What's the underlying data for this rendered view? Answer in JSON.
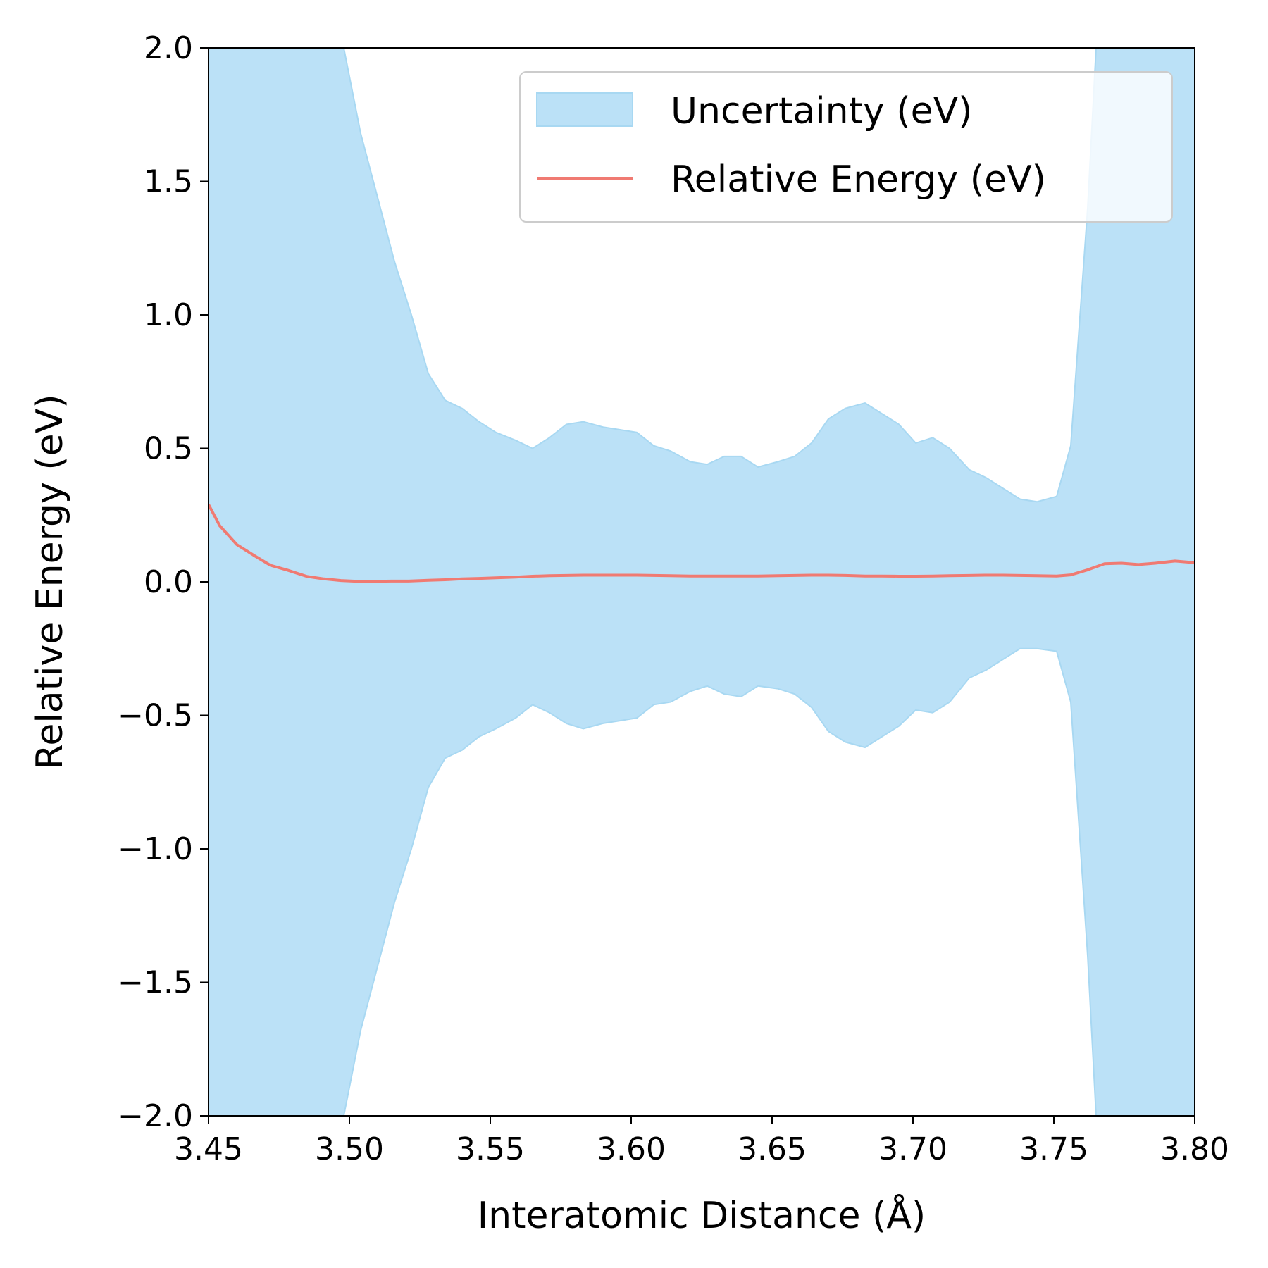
{
  "chart_data": {
    "type": "area",
    "title": "",
    "xlabel": "Interatomic Distance (Å)",
    "ylabel": "Relative Energy (eV)",
    "xlim": [
      3.45,
      3.8
    ],
    "ylim": [
      -2.0,
      2.0
    ],
    "grid": false,
    "legend_position": "top-right",
    "x_ticks": [
      "3.45",
      "3.50",
      "3.55",
      "3.60",
      "3.65",
      "3.70",
      "3.75",
      "3.80"
    ],
    "y_ticks": [
      "2.0",
      "1.5",
      "1.0",
      "0.5",
      "0.0",
      "−0.5",
      "−1.0",
      "−1.5",
      "−2.0"
    ],
    "x_tick_values": [
      3.45,
      3.5,
      3.55,
      3.6,
      3.65,
      3.7,
      3.75,
      3.8
    ],
    "y_tick_values": [
      2.0,
      1.5,
      1.0,
      0.5,
      0.0,
      -0.5,
      -1.0,
      -1.5,
      -2.0
    ],
    "series": [
      {
        "name": "Relative Energy (eV)",
        "kind": "line",
        "color": "#f07a72",
        "x": [
          3.45,
          3.454,
          3.46,
          3.466,
          3.472,
          3.478,
          3.485,
          3.491,
          3.497,
          3.503,
          3.509,
          3.515,
          3.521,
          3.528,
          3.534,
          3.54,
          3.546,
          3.552,
          3.559,
          3.565,
          3.571,
          3.577,
          3.583,
          3.59,
          3.596,
          3.602,
          3.608,
          3.614,
          3.621,
          3.627,
          3.633,
          3.639,
          3.645,
          3.652,
          3.658,
          3.664,
          3.67,
          3.676,
          3.683,
          3.689,
          3.695,
          3.701,
          3.707,
          3.713,
          3.72,
          3.726,
          3.732,
          3.738,
          3.744,
          3.751,
          3.756,
          3.762,
          3.768,
          3.774,
          3.78,
          3.786,
          3.793,
          3.8
        ],
        "y": [
          0.29,
          0.21,
          0.14,
          0.1,
          0.062,
          0.044,
          0.02,
          0.011,
          0.005,
          0.002,
          0.002,
          0.003,
          0.003,
          0.006,
          0.008,
          0.011,
          0.013,
          0.015,
          0.018,
          0.021,
          0.023,
          0.024,
          0.025,
          0.025,
          0.025,
          0.025,
          0.024,
          0.023,
          0.022,
          0.022,
          0.022,
          0.022,
          0.022,
          0.023,
          0.024,
          0.025,
          0.025,
          0.024,
          0.022,
          0.022,
          0.021,
          0.021,
          0.022,
          0.023,
          0.024,
          0.025,
          0.025,
          0.024,
          0.023,
          0.022,
          0.026,
          0.045,
          0.068,
          0.07,
          0.065,
          0.07,
          0.078,
          0.072
        ]
      },
      {
        "name": "Uncertainty (eV)",
        "kind": "band",
        "color": "#bbe1f7",
        "edge_color": "#a8d8f2",
        "x": [
          3.45,
          3.498,
          3.504,
          3.51,
          3.516,
          3.522,
          3.528,
          3.534,
          3.54,
          3.546,
          3.552,
          3.559,
          3.565,
          3.571,
          3.577,
          3.583,
          3.59,
          3.596,
          3.602,
          3.608,
          3.614,
          3.621,
          3.627,
          3.633,
          3.639,
          3.645,
          3.652,
          3.658,
          3.664,
          3.67,
          3.676,
          3.683,
          3.689,
          3.695,
          3.701,
          3.707,
          3.713,
          3.72,
          3.726,
          3.732,
          3.738,
          3.744,
          3.751,
          3.756,
          3.762,
          3.765,
          3.8
        ],
        "upper": [
          2.0,
          2.0,
          1.68,
          1.44,
          1.2,
          1.0,
          0.78,
          0.68,
          0.65,
          0.6,
          0.56,
          0.53,
          0.5,
          0.54,
          0.59,
          0.6,
          0.58,
          0.57,
          0.56,
          0.51,
          0.49,
          0.45,
          0.44,
          0.47,
          0.47,
          0.43,
          0.45,
          0.47,
          0.52,
          0.61,
          0.65,
          0.67,
          0.63,
          0.59,
          0.52,
          0.54,
          0.5,
          0.42,
          0.39,
          0.35,
          0.31,
          0.3,
          0.32,
          0.51,
          1.4,
          2.0,
          2.0
        ],
        "lower": [
          -2.0,
          -2.0,
          -1.68,
          -1.44,
          -1.2,
          -1.0,
          -0.77,
          -0.66,
          -0.63,
          -0.58,
          -0.55,
          -0.51,
          -0.46,
          -0.49,
          -0.53,
          -0.55,
          -0.53,
          -0.52,
          -0.51,
          -0.46,
          -0.45,
          -0.41,
          -0.39,
          -0.42,
          -0.43,
          -0.39,
          -0.4,
          -0.42,
          -0.47,
          -0.56,
          -0.6,
          -0.62,
          -0.58,
          -0.54,
          -0.48,
          -0.49,
          -0.45,
          -0.36,
          -0.33,
          -0.29,
          -0.25,
          -0.25,
          -0.26,
          -0.45,
          -1.4,
          -2.0,
          -2.0
        ]
      }
    ],
    "legend": {
      "band_label": "Uncertainty (eV)",
      "line_label": "Relative Energy (eV)"
    }
  }
}
